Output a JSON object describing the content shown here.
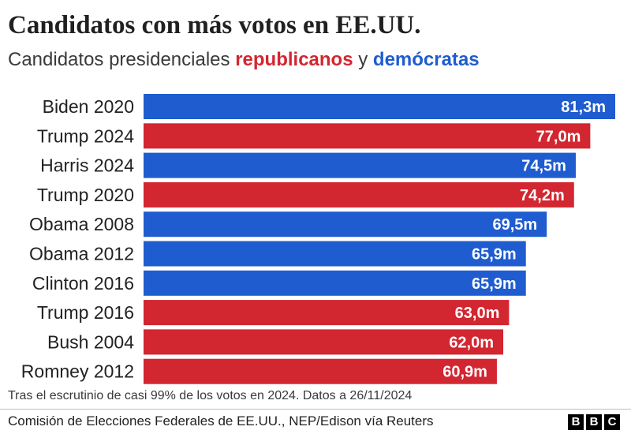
{
  "header": {
    "title": "Candidatos con más votos en EE.UU.",
    "subtitle_prefix": "Candidatos presidenciales ",
    "subtitle_rep": "republicanos",
    "subtitle_mid": " y ",
    "subtitle_dem": "demócratas"
  },
  "colors": {
    "republican": "#d22630",
    "democrat": "#1f5ccf"
  },
  "chart_data": {
    "type": "bar",
    "orientation": "horizontal",
    "unit": "m",
    "categories": [
      "Biden 2020",
      "Trump 2024",
      "Harris 2024",
      "Trump 2020",
      "Obama 2008",
      "Obama 2012",
      "Clinton 2016",
      "Trump 2016",
      "Bush 2004",
      "Romney 2012"
    ],
    "values": [
      81.3,
      77.0,
      74.5,
      74.2,
      69.5,
      65.9,
      65.9,
      63.0,
      62.0,
      60.9
    ],
    "value_labels": [
      "81,3m",
      "77,0m",
      "74,5m",
      "74,2m",
      "69,5m",
      "65,9m",
      "65,9m",
      "63,0m",
      "62,0m",
      "60,9m"
    ],
    "party": [
      "dem",
      "rep",
      "dem",
      "rep",
      "dem",
      "dem",
      "dem",
      "rep",
      "rep",
      "rep"
    ],
    "xlim": [
      0,
      81.3
    ],
    "grid": false,
    "legend": "subtitle"
  },
  "footer": {
    "note": "Tras el escrutinio de casi 99% de los votos en 2024. Datos a 26/11/2024",
    "source": "Comisión de Elecciones Federales de EE.UU., NEP/Edison vía Reuters",
    "logo": [
      "B",
      "B",
      "C"
    ]
  }
}
